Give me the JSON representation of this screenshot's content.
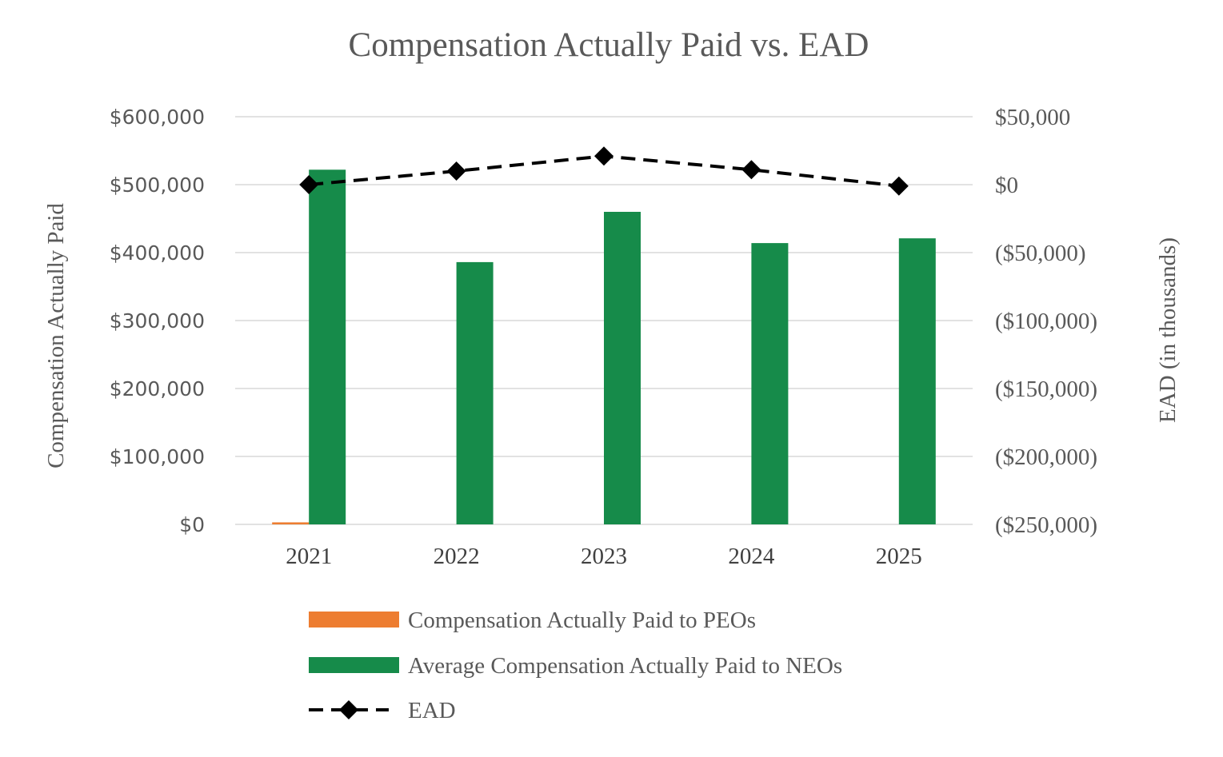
{
  "chart_data": {
    "type": "bar",
    "title": "Compensation Actually Paid vs. EAD",
    "categories": [
      "2021",
      "2022",
      "2023",
      "2024",
      "2025"
    ],
    "y_left": {
      "label": "Compensation Actually Paid",
      "range": [
        0,
        600000
      ],
      "ticks": [
        "$0",
        "$100,000",
        "$200,000",
        "$300,000",
        "$400,000",
        "$500,000",
        "$600,000"
      ]
    },
    "y_right": {
      "label": "EAD (in thousands)",
      "range": [
        -250000,
        50000
      ],
      "ticks": [
        "($250,000)",
        "($200,000)",
        "($150,000)",
        "($100,000)",
        "($50,000)",
        "$0",
        "$50,000"
      ]
    },
    "series": [
      {
        "name": "Compensation Actually Paid to PEOs",
        "type": "bar",
        "axis": "left",
        "color": "#ED7D31",
        "values": [
          3000,
          0,
          0,
          0,
          0
        ]
      },
      {
        "name": "Average Compensation Actually Paid to NEOs",
        "type": "bar",
        "axis": "left",
        "color": "#168B4A",
        "values": [
          522000,
          386000,
          460000,
          414000,
          421000
        ]
      },
      {
        "name": "EAD",
        "type": "line",
        "axis": "right",
        "color": "#000000",
        "style": "dashed",
        "marker": "diamond",
        "values": [
          0,
          10000,
          21000,
          11000,
          -1000
        ]
      }
    ],
    "grid": true,
    "legend_position": "bottom"
  }
}
